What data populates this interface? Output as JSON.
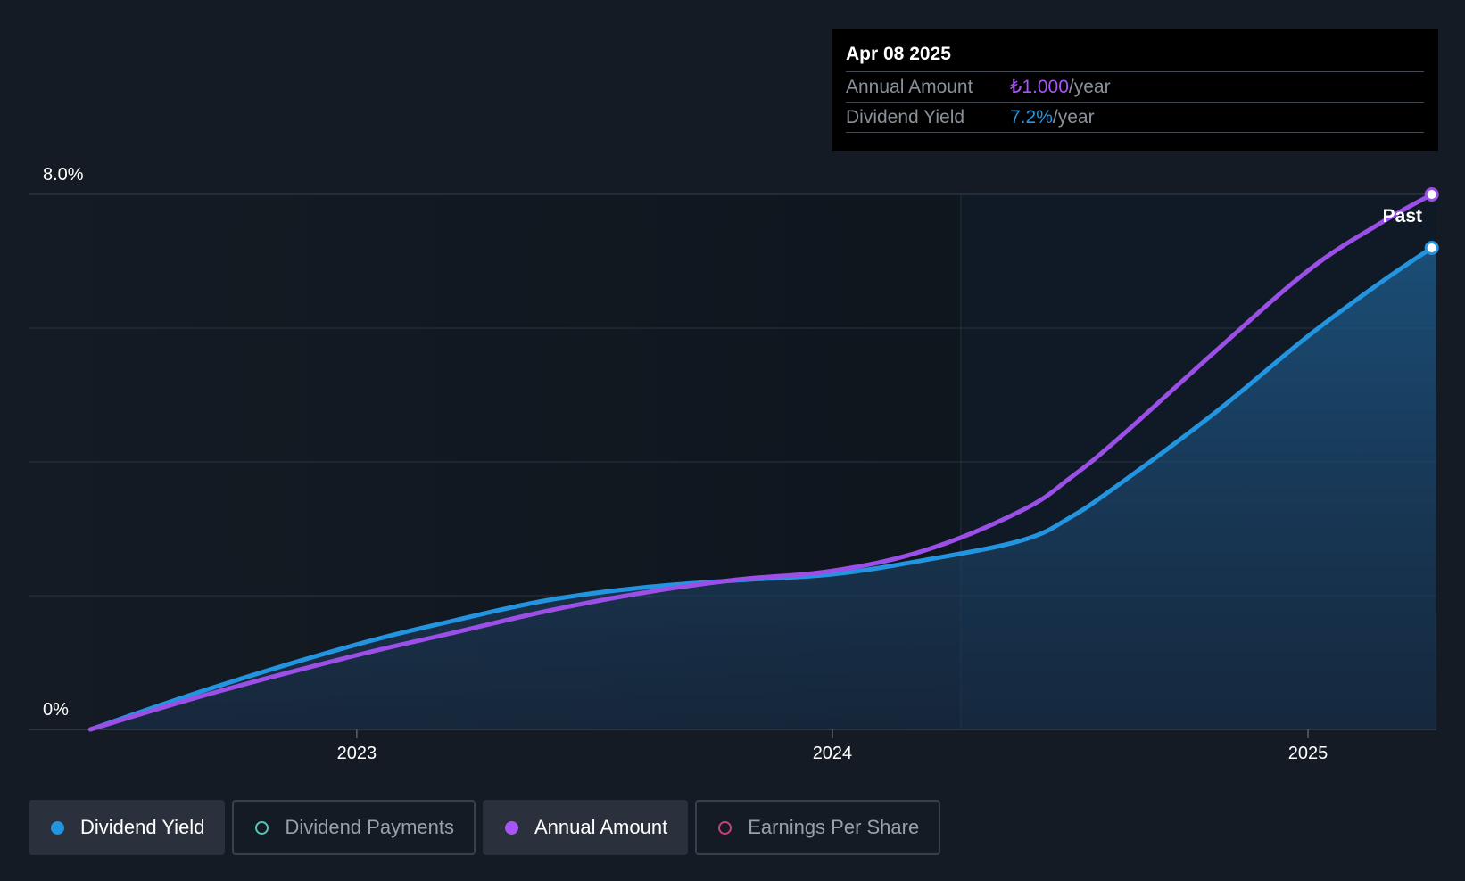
{
  "colors": {
    "background": "#151b24",
    "dividend_yield": "#2394df",
    "annual_amount": "#9b4fe6",
    "dividend_payments": "#58c4b6",
    "earnings_per_share": "#c2457a",
    "grid": "#2c333d",
    "past_region": "#0f1a26"
  },
  "tooltip": {
    "date": "Apr 08 2025",
    "rows": [
      {
        "label": "Annual Amount",
        "value": "₺1.000",
        "unit": "/year",
        "color": "#a855f7"
      },
      {
        "label": "Dividend Yield",
        "value": "7.2%",
        "unit": "/year",
        "color": "#2394df"
      }
    ]
  },
  "past_label": "Past",
  "legend": [
    {
      "label": "Dividend Yield",
      "active": true,
      "color": "#2394df",
      "filled": true
    },
    {
      "label": "Dividend Payments",
      "active": false,
      "color": "#58c4b6",
      "filled": false
    },
    {
      "label": "Annual Amount",
      "active": true,
      "color": "#a855f7",
      "filled": true
    },
    {
      "label": "Earnings Per Share",
      "active": false,
      "color": "#c2457a",
      "filled": false
    }
  ],
  "chart_data": {
    "type": "line",
    "ylim": [
      0,
      8
    ],
    "y_ticks": [
      {
        "value": 8,
        "label": "8.0%"
      },
      {
        "value": 0,
        "label": "0%"
      }
    ],
    "y_gridlines": [
      0,
      2,
      4,
      6,
      8
    ],
    "xlim": [
      2022.31,
      2025.27
    ],
    "x_ticks": [
      {
        "value": 2023,
        "label": "2023"
      },
      {
        "value": 2024,
        "label": "2024"
      },
      {
        "value": 2025,
        "label": "2025"
      }
    ],
    "past_region_start": 2024.27,
    "grid": true,
    "series": [
      {
        "name": "Dividend Yield",
        "color": "#2394df",
        "area": true,
        "x": [
          2022.44,
          2022.7,
          2023.0,
          2023.2,
          2023.4,
          2023.6,
          2023.8,
          2024.0,
          2024.2,
          2024.4,
          2024.5,
          2024.6,
          2024.8,
          2025.0,
          2025.15,
          2025.26
        ],
        "values": [
          0,
          0.63,
          1.27,
          1.62,
          1.93,
          2.12,
          2.23,
          2.32,
          2.54,
          2.83,
          3.17,
          3.65,
          4.71,
          5.88,
          6.67,
          7.2
        ]
      },
      {
        "name": "Annual Amount",
        "color": "#9b4fe6",
        "area": false,
        "x": [
          2022.44,
          2022.7,
          2023.0,
          2023.2,
          2023.4,
          2023.6,
          2023.8,
          2024.0,
          2024.2,
          2024.4,
          2024.5,
          2024.6,
          2024.8,
          2025.0,
          2025.15,
          2025.26
        ],
        "values": [
          0,
          0.55,
          1.11,
          1.44,
          1.77,
          2.04,
          2.24,
          2.37,
          2.69,
          3.28,
          3.76,
          4.34,
          5.62,
          6.86,
          7.56,
          8.0
        ]
      }
    ]
  }
}
